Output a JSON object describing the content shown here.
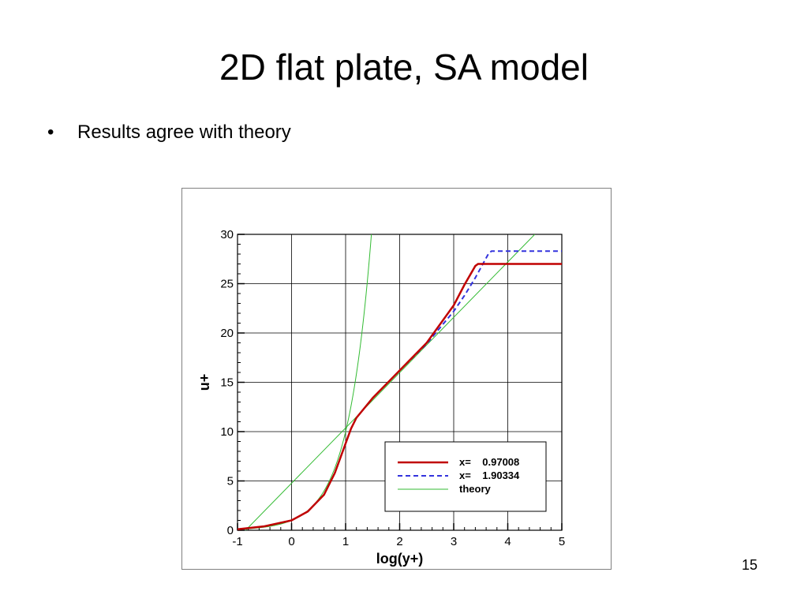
{
  "slide": {
    "title": "2D flat plate, SA model",
    "bullets": [
      "Results agree with theory"
    ],
    "bullet_marker": "•",
    "page_number": "15"
  },
  "chart_data": {
    "type": "line",
    "xlabel": "log(y+)",
    "ylabel": "u+",
    "xlim": [
      -1,
      5
    ],
    "ylim": [
      0,
      30
    ],
    "xticks": [
      "-1",
      "0",
      "1",
      "2",
      "3",
      "4",
      "5"
    ],
    "yticks": [
      "0",
      "5",
      "10",
      "15",
      "20",
      "25",
      "30"
    ],
    "grid": true,
    "legend_position": "bottom-right",
    "series": [
      {
        "name": "x=    0.97008",
        "color": "#c00000",
        "style": "solid",
        "x": [
          -1,
          -0.5,
          0,
          0.3,
          0.6,
          0.8,
          1.0,
          1.1,
          1.2,
          1.35,
          1.5,
          1.75,
          2.0,
          2.5,
          3.0,
          3.2,
          3.4,
          3.45,
          5.0
        ],
        "y": [
          0.1,
          0.4,
          1.0,
          1.9,
          3.6,
          5.8,
          8.8,
          10.3,
          11.4,
          12.4,
          13.4,
          14.8,
          16.2,
          19.0,
          22.8,
          24.9,
          26.8,
          27.0,
          27.0
        ]
      },
      {
        "name": "x=    1.90334",
        "color": "#3333dd",
        "style": "dashed",
        "x": [
          -1,
          -0.5,
          0,
          0.3,
          0.6,
          0.8,
          1.0,
          1.1,
          1.2,
          1.35,
          1.5,
          1.75,
          2.0,
          2.5,
          3.0,
          3.2,
          3.4,
          3.65,
          3.7,
          5.0
        ],
        "y": [
          0.1,
          0.4,
          1.0,
          1.9,
          3.6,
          5.8,
          8.8,
          10.3,
          11.4,
          12.4,
          13.4,
          14.8,
          16.2,
          18.9,
          22.2,
          23.8,
          25.6,
          28.1,
          28.3,
          28.3
        ]
      },
      {
        "name": "theory",
        "color": "#33bb33",
        "style": "thin",
        "x": [
          -0.85,
          4.5
        ],
        "y": [
          0,
          30
        ],
        "y_viscous": [
          0,
          30
        ]
      }
    ]
  }
}
